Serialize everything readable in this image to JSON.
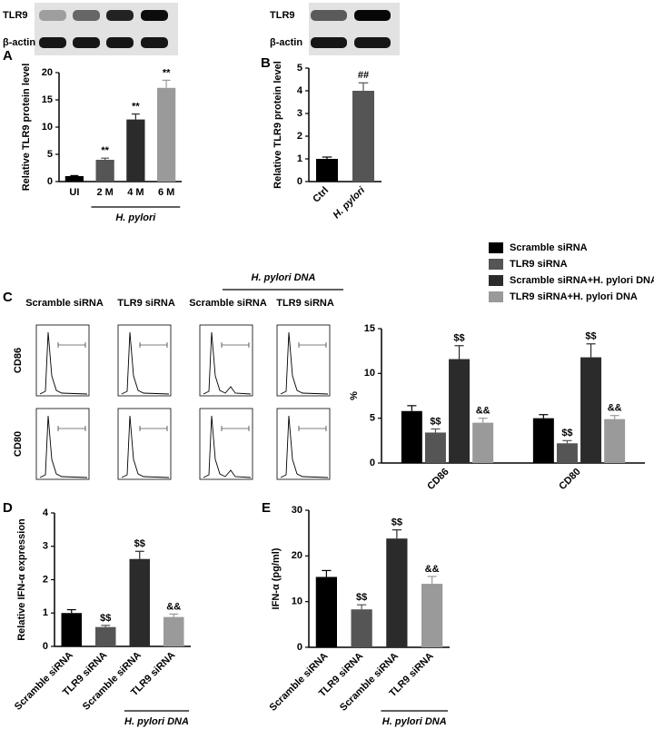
{
  "chart_data": [
    {
      "type": "bar",
      "panel": "A",
      "ylabel": "Relative TLR9 protein level",
      "categories": [
        "UI",
        "2 M",
        "4 M",
        "6 M"
      ],
      "values": [
        1.0,
        4.0,
        11.4,
        17.2
      ],
      "errors": [
        0.1,
        0.3,
        1.0,
        1.4
      ],
      "colors": [
        "#000000",
        "#555555",
        "#2b2b2b",
        "#9a9a9a"
      ],
      "annotations": [
        null,
        "**",
        "**",
        "**"
      ],
      "group_label": "H. pylori",
      "ylim": [
        0,
        20
      ],
      "yticks": [
        0,
        5,
        10,
        15,
        20
      ]
    },
    {
      "type": "bar",
      "panel": "B",
      "ylabel": "Relative TLR9 protein level",
      "categories": [
        "Ctrl",
        "H. pylori"
      ],
      "values": [
        1.0,
        4.0
      ],
      "errors": [
        0.08,
        0.35
      ],
      "colors": [
        "#000000",
        "#555555"
      ],
      "annotations": [
        null,
        "##"
      ],
      "ylim": [
        0,
        5
      ],
      "yticks": [
        0,
        1,
        2,
        3,
        4,
        5
      ]
    },
    {
      "type": "grouped-bar",
      "ylabel": "%",
      "legend": "top right",
      "categories": [
        "CD86",
        "CD80"
      ],
      "series": [
        {
          "name": "Scramble siRNA",
          "color": "#000000",
          "values": [
            5.8,
            5.0
          ],
          "errors": [
            0.6,
            0.4
          ],
          "annotations": [
            null,
            null
          ]
        },
        {
          "name": "TLR9 siRNA",
          "color": "#555555",
          "values": [
            3.4,
            2.2
          ],
          "errors": [
            0.4,
            0.3
          ],
          "annotations": [
            "$$",
            "$$"
          ]
        },
        {
          "name": "Scramble siRNA+H. pylori DNA",
          "color": "#2b2b2b",
          "values": [
            11.6,
            11.8
          ],
          "errors": [
            1.5,
            1.5
          ],
          "annotations": [
            "$$",
            "$$"
          ]
        },
        {
          "name": "TLR9 siRNA+H. pylori DNA",
          "color": "#9a9a9a",
          "values": [
            4.5,
            4.9
          ],
          "errors": [
            0.5,
            0.4
          ],
          "annotations": [
            "&&",
            "&&"
          ]
        }
      ],
      "ylim": [
        0,
        15
      ],
      "yticks": [
        0,
        5,
        10,
        15
      ]
    },
    {
      "type": "bar",
      "panel": "D",
      "ylabel": "Relative IFN-α expression",
      "categories": [
        "Scramble siRNA",
        "TLR9 siRNA",
        "Scramble siRNA",
        "TLR9 siRNA"
      ],
      "values": [
        1.0,
        0.58,
        2.62,
        0.88
      ],
      "errors": [
        0.1,
        0.05,
        0.23,
        0.09
      ],
      "colors": [
        "#000000",
        "#555555",
        "#2b2b2b",
        "#9a9a9a"
      ],
      "annotations": [
        null,
        "$$",
        "$$",
        "&&"
      ],
      "group_label": "H. pylori DNA",
      "ylim": [
        0,
        4
      ],
      "yticks": [
        0,
        1,
        2,
        3,
        4
      ]
    },
    {
      "type": "bar",
      "panel": "E",
      "ylabel": "IFN-α (pg/ml)",
      "categories": [
        "Scramble siRNA",
        "TLR9 siRNA",
        "Scramble siRNA",
        "TLR9 siRNA"
      ],
      "values": [
        15.4,
        8.3,
        23.8,
        13.9
      ],
      "errors": [
        1.4,
        1.0,
        1.9,
        1.6
      ],
      "colors": [
        "#000000",
        "#555555",
        "#2b2b2b",
        "#9a9a9a"
      ],
      "annotations": [
        null,
        "$$",
        "$$",
        "&&"
      ],
      "group_label": "H. pylori DNA",
      "ylim": [
        0,
        30
      ],
      "yticks": [
        0,
        10,
        20,
        30
      ]
    }
  ],
  "blots": [
    {
      "labels": [
        "TLR9",
        "β-actin"
      ]
    },
    {
      "labels": [
        "TLR9",
        "β-actin"
      ]
    }
  ],
  "flow": {
    "panel": "C",
    "group_label": "H. pylori DNA",
    "columns": [
      "Scramble siRNA",
      "TLR9 siRNA",
      "Scramble siRNA",
      "TLR9 siRNA"
    ],
    "rows": [
      "CD86",
      "CD80"
    ]
  }
}
